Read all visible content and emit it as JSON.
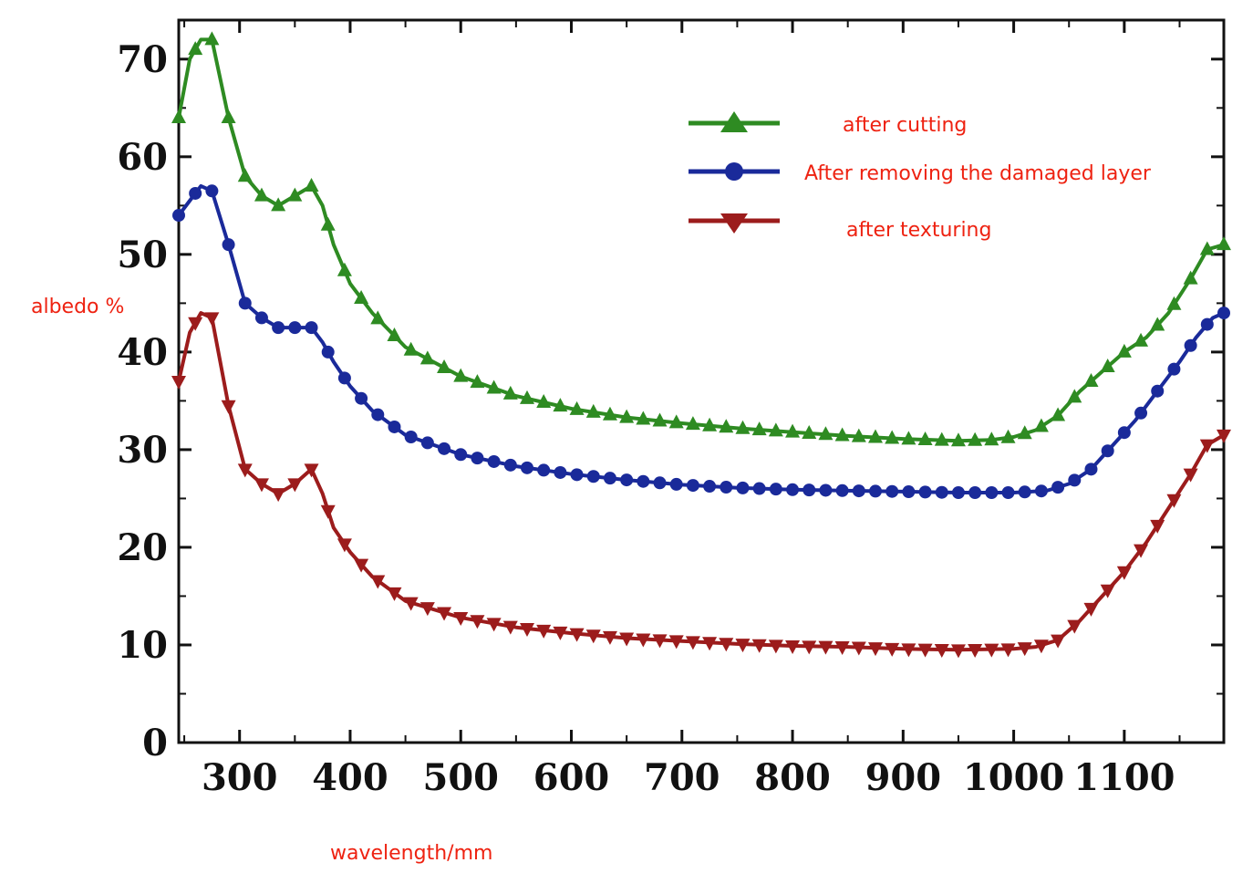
{
  "chart_data": {
    "type": "line",
    "title": "",
    "xlabel": "wavelength/mm",
    "ylabel": "albedo %",
    "xlim": [
      245,
      1190
    ],
    "ylim": [
      0,
      74
    ],
    "xticks": [
      300,
      400,
      500,
      600,
      700,
      800,
      900,
      1000,
      1100
    ],
    "yticks": [
      0,
      10,
      20,
      30,
      40,
      50,
      60,
      70
    ],
    "grid": false,
    "legend_position": "top-right",
    "series": [
      {
        "name": "after cutting",
        "color": "#2e8b22",
        "marker": "triangle-up",
        "points": [
          [
            245,
            64
          ],
          [
            255,
            70
          ],
          [
            265,
            72
          ],
          [
            275,
            72
          ],
          [
            290,
            64
          ],
          [
            305,
            58
          ],
          [
            320,
            56
          ],
          [
            335,
            55
          ],
          [
            350,
            56
          ],
          [
            365,
            57
          ],
          [
            375,
            55
          ],
          [
            385,
            51
          ],
          [
            400,
            47
          ],
          [
            420,
            44
          ],
          [
            450,
            40.5
          ],
          [
            500,
            37.5
          ],
          [
            550,
            35.5
          ],
          [
            600,
            34.2
          ],
          [
            650,
            33.3
          ],
          [
            700,
            32.7
          ],
          [
            750,
            32.2
          ],
          [
            800,
            31.8
          ],
          [
            850,
            31.4
          ],
          [
            900,
            31.1
          ],
          [
            950,
            30.9
          ],
          [
            980,
            31
          ],
          [
            1000,
            31.3
          ],
          [
            1020,
            32
          ],
          [
            1040,
            33.5
          ],
          [
            1060,
            36
          ],
          [
            1080,
            38
          ],
          [
            1100,
            40
          ],
          [
            1120,
            41.5
          ],
          [
            1140,
            44
          ],
          [
            1160,
            47.5
          ],
          [
            1175,
            50.5
          ],
          [
            1190,
            51
          ]
        ]
      },
      {
        "name": "After removing the damaged layer",
        "color": "#1a2a9a",
        "marker": "circle",
        "points": [
          [
            245,
            54
          ],
          [
            255,
            55.5
          ],
          [
            265,
            57
          ],
          [
            275,
            56.5
          ],
          [
            290,
            51
          ],
          [
            305,
            45
          ],
          [
            320,
            43.5
          ],
          [
            335,
            42.5
          ],
          [
            350,
            42.5
          ],
          [
            365,
            42.5
          ],
          [
            375,
            41
          ],
          [
            385,
            39
          ],
          [
            400,
            36.5
          ],
          [
            420,
            34
          ],
          [
            450,
            31.5
          ],
          [
            500,
            29.5
          ],
          [
            550,
            28.3
          ],
          [
            600,
            27.5
          ],
          [
            650,
            26.9
          ],
          [
            700,
            26.4
          ],
          [
            750,
            26.1
          ],
          [
            800,
            25.9
          ],
          [
            850,
            25.8
          ],
          [
            900,
            25.7
          ],
          [
            950,
            25.6
          ],
          [
            1000,
            25.6
          ],
          [
            1030,
            25.8
          ],
          [
            1050,
            26.5
          ],
          [
            1070,
            28
          ],
          [
            1090,
            30.5
          ],
          [
            1110,
            33
          ],
          [
            1130,
            36
          ],
          [
            1150,
            39
          ],
          [
            1165,
            41.5
          ],
          [
            1180,
            43.5
          ],
          [
            1190,
            44
          ]
        ]
      },
      {
        "name": "after texturing",
        "color": "#9c1c1c",
        "marker": "triangle-down",
        "points": [
          [
            245,
            37
          ],
          [
            255,
            42
          ],
          [
            265,
            44
          ],
          [
            275,
            43.5
          ],
          [
            290,
            34.5
          ],
          [
            305,
            28
          ],
          [
            320,
            26.5
          ],
          [
            335,
            25.5
          ],
          [
            350,
            26.5
          ],
          [
            365,
            28
          ],
          [
            375,
            25.5
          ],
          [
            385,
            22
          ],
          [
            400,
            19.5
          ],
          [
            420,
            17
          ],
          [
            450,
            14.5
          ],
          [
            500,
            12.8
          ],
          [
            550,
            11.8
          ],
          [
            600,
            11.2
          ],
          [
            650,
            10.7
          ],
          [
            700,
            10.4
          ],
          [
            750,
            10.1
          ],
          [
            800,
            9.9
          ],
          [
            850,
            9.8
          ],
          [
            900,
            9.6
          ],
          [
            950,
            9.5
          ],
          [
            1000,
            9.6
          ],
          [
            1020,
            9.8
          ],
          [
            1040,
            10.5
          ],
          [
            1060,
            12.5
          ],
          [
            1080,
            15
          ],
          [
            1100,
            17.5
          ],
          [
            1120,
            20.5
          ],
          [
            1140,
            24
          ],
          [
            1160,
            27.5
          ],
          [
            1175,
            30.5
          ],
          [
            1190,
            31.5
          ]
        ]
      }
    ]
  },
  "legend": {
    "items": [
      "after cutting",
      "After removing the damaged layer",
      "after texturing"
    ]
  }
}
